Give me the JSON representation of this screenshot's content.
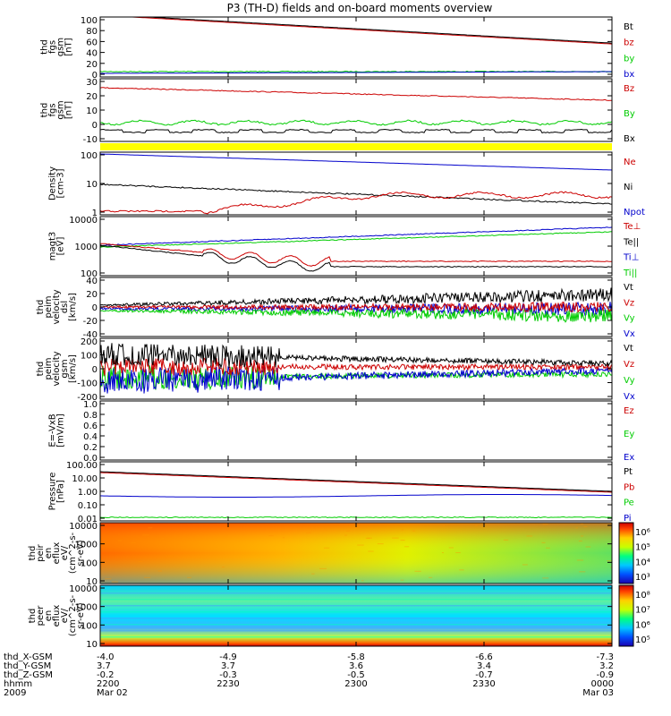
{
  "title": "P3 (TH-D) fields and on-board moments overview",
  "colors": {
    "black": "#000000",
    "red": "#cc0000",
    "green": "#00cc00",
    "blue": "#0000cc",
    "yellow": "#ffff00"
  },
  "chart_data": [
    {
      "type": "line",
      "ylabel": [
        "thd",
        "fgs",
        "gsm",
        "[nT]"
      ],
      "yticks": [
        "100",
        "80",
        "60",
        "40",
        "20",
        "0"
      ],
      "ylim": [
        -5,
        100
      ],
      "series": [
        {
          "name": "Bt",
          "color": "black"
        },
        {
          "name": "bz",
          "color": "red"
        },
        {
          "name": "by",
          "color": "green"
        },
        {
          "name": "bx",
          "color": "blue"
        }
      ]
    },
    {
      "type": "line",
      "ylabel": [
        "thd",
        "fgs",
        "gsm",
        "[nT]"
      ],
      "yticks": [
        "30",
        "20",
        "10",
        "0",
        "-10"
      ],
      "ylim": [
        -15,
        32
      ],
      "series": [
        {
          "name": "Bz",
          "color": "red"
        },
        {
          "name": "By",
          "color": "green"
        },
        {
          "name": "Bx",
          "color": "black"
        }
      ]
    },
    {
      "type": "line",
      "ylabel": [
        "Density",
        "[cm-3]"
      ],
      "yticks": [
        "100",
        "10",
        "1"
      ],
      "ylim": [
        0.3,
        300
      ],
      "scale": "log",
      "series": [
        {
          "name": "Ne",
          "color": "red"
        },
        {
          "name": "Ni",
          "color": "black"
        },
        {
          "name": "Npot",
          "color": "blue"
        }
      ]
    },
    {
      "type": "line",
      "ylabel": [
        "magt3",
        "[eV]"
      ],
      "yticks": [
        "10000",
        "1000",
        "100"
      ],
      "ylim": [
        30,
        10000
      ],
      "scale": "log",
      "series": [
        {
          "name": "Te⊥",
          "color": "red"
        },
        {
          "name": "Te||",
          "color": "black"
        },
        {
          "name": "Ti⊥",
          "color": "blue"
        },
        {
          "name": "Ti||",
          "color": "green"
        }
      ]
    },
    {
      "type": "line",
      "ylabel": [
        "thd",
        "peim",
        "velocity",
        "dsl",
        "[km/s]"
      ],
      "yticks": [
        "40",
        "20",
        "0",
        "-20",
        "-40"
      ],
      "ylim": [
        -40,
        40
      ],
      "series": [
        {
          "name": "Vt",
          "color": "black"
        },
        {
          "name": "Vz",
          "color": "red"
        },
        {
          "name": "Vy",
          "color": "green"
        },
        {
          "name": "Vx",
          "color": "blue"
        }
      ]
    },
    {
      "type": "line",
      "ylabel": [
        "thd",
        "peim",
        "velocity",
        "gsm",
        "[km/s]"
      ],
      "yticks": [
        "200",
        "100",
        "0",
        "-100",
        "-200"
      ],
      "ylim": [
        -200,
        200
      ],
      "series": [
        {
          "name": "Vt",
          "color": "black"
        },
        {
          "name": "Vz",
          "color": "red"
        },
        {
          "name": "Vy",
          "color": "green"
        },
        {
          "name": "Vx",
          "color": "blue"
        }
      ]
    },
    {
      "type": "line",
      "ylabel": [
        "E=-VxB",
        "[mV/m]"
      ],
      "yticks": [
        "1.0",
        "0.8",
        "0.6",
        "0.4",
        "0.2",
        "0.0"
      ],
      "ylim": [
        0,
        1
      ],
      "series": [
        {
          "name": "Ez",
          "color": "red"
        },
        {
          "name": "Ey",
          "color": "green"
        },
        {
          "name": "Ex",
          "color": "blue"
        }
      ]
    },
    {
      "type": "line",
      "ylabel": [
        "Pressure",
        "[nPa]"
      ],
      "yticks": [
        "100.00",
        "10.00",
        "1.00",
        "0.10",
        "0.01"
      ],
      "ylim": [
        0.01,
        100
      ],
      "scale": "log",
      "series": [
        {
          "name": "Pt",
          "color": "black"
        },
        {
          "name": "Pb",
          "color": "red"
        },
        {
          "name": "Pe",
          "color": "green"
        },
        {
          "name": "Pi",
          "color": "blue"
        }
      ]
    },
    {
      "type": "heatmap",
      "ylabel": [
        "thd",
        "peir",
        "en",
        "eflux",
        "eV/",
        "(cm^2-s-",
        "sr-eV)"
      ],
      "yticks": [
        "10000",
        "1000",
        "100",
        "10"
      ],
      "colorbar": [
        "10⁶",
        "10⁵",
        "10⁴",
        "10³"
      ]
    },
    {
      "type": "heatmap",
      "ylabel": [
        "thd",
        "peer",
        "en",
        "eflux",
        "eV/",
        "(cm^2-s-",
        "sr-eV)"
      ],
      "yticks": [
        "10000",
        "1000",
        "100",
        "10"
      ],
      "colorbar": [
        "10⁸",
        "10⁷",
        "10⁶",
        "10⁵"
      ]
    }
  ],
  "xaxis": {
    "rows": [
      {
        "label": "thd_X-GSM",
        "values": [
          "-4.0",
          "-4.9",
          "-5.8",
          "-6.6",
          "-7.3"
        ]
      },
      {
        "label": "thd_Y-GSM",
        "values": [
          "3.7",
          "3.7",
          "3.6",
          "3.4",
          "3.2"
        ]
      },
      {
        "label": "thd_Z-GSM",
        "values": [
          "-0.2",
          "-0.3",
          "-0.5",
          "-0.7",
          "-0.9"
        ]
      },
      {
        "label": "hhmm",
        "values": [
          "2200",
          "2230",
          "2300",
          "2330",
          "0000"
        ]
      },
      {
        "label": "2009",
        "values": [
          "Mar 02",
          "",
          "",
          "",
          "Mar 03"
        ]
      }
    ]
  }
}
